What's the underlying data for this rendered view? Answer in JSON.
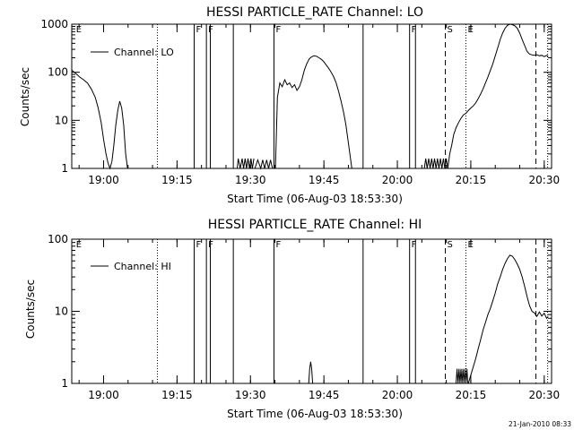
{
  "stamp": "21-Jan-2010 08:33",
  "chart_data": [
    {
      "type": "line",
      "title": "HESSI PARTICLE_RATE Channel: LO",
      "xlabel": "Start Time (06-Aug-03 18:53:30)",
      "ylabel": "Counts/sec",
      "yscale": "log",
      "xlim": [
        0,
        98
      ],
      "ylim": [
        1,
        1000
      ],
      "xticks": [
        {
          "x": 6.5,
          "label": "19:00"
        },
        {
          "x": 21.5,
          "label": "19:15"
        },
        {
          "x": 36.5,
          "label": "19:30"
        },
        {
          "x": 51.5,
          "label": "19:45"
        },
        {
          "x": 66.5,
          "label": "20:00"
        },
        {
          "x": 81.5,
          "label": "20:15"
        },
        {
          "x": 96.5,
          "label": "20:30"
        }
      ],
      "yticks": [
        {
          "y": 1,
          "label": "1"
        },
        {
          "y": 10,
          "label": "10"
        },
        {
          "y": 100,
          "label": "100"
        },
        {
          "y": 1000,
          "label": "1000"
        }
      ],
      "legend": {
        "position": "top-left",
        "label": "Channel: LO"
      },
      "markers": [
        {
          "x": 0.5,
          "label": "E",
          "style": "none"
        },
        {
          "x": 17.5,
          "label": "",
          "style": "dotted"
        },
        {
          "x": 25.0,
          "label": "F",
          "style": "solid"
        },
        {
          "x": 27.5,
          "label": "F",
          "style": "solid"
        },
        {
          "x": 28.3,
          "label": "",
          "style": "solid"
        },
        {
          "x": 33.0,
          "label": "",
          "style": "solid"
        },
        {
          "x": 41.3,
          "label": "F",
          "style": "solid"
        },
        {
          "x": 59.5,
          "label": "",
          "style": "solid"
        },
        {
          "x": 69.0,
          "label": "F",
          "style": "solid"
        },
        {
          "x": 70.2,
          "label": "",
          "style": "solid"
        },
        {
          "x": 76.3,
          "label": "S",
          "style": "dashed"
        },
        {
          "x": 80.5,
          "label": "E",
          "style": "dotted"
        },
        {
          "x": 94.8,
          "label": "",
          "style": "dashed"
        },
        {
          "x": 97.2,
          "label": "",
          "style": "dotted"
        }
      ],
      "series": [
        {
          "segment": 1,
          "x": [
            0,
            0.8,
            1.6,
            2.4,
            3.2,
            4.0,
            4.8,
            5.4,
            6.0,
            6.5,
            7.0,
            7.4,
            7.8,
            8.2
          ],
          "y": [
            110,
            95,
            80,
            70,
            60,
            45,
            30,
            18,
            9,
            4,
            2,
            1.3,
            1.0,
            1.4
          ]
        },
        {
          "segment": 2,
          "x": [
            8.2,
            8.6,
            9.0,
            9.4,
            9.8,
            10.2,
            10.6,
            11.0,
            11.4
          ],
          "y": [
            1.4,
            3,
            8,
            16,
            25,
            18,
            8,
            2,
            1.0
          ]
        },
        {
          "segment": 3,
          "x": [
            33.8,
            34.0,
            34.4,
            34.8,
            35.1,
            35.4,
            35.7,
            36.0,
            36.3,
            36.6,
            36.9,
            37.2
          ],
          "y": [
            1.0,
            1.6,
            1.0,
            1.6,
            1.0,
            1.6,
            1.0,
            1.6,
            1.0,
            1.6,
            1.0,
            1.6
          ]
        },
        {
          "segment": 4,
          "x": [
            37.4,
            38.0,
            38.6,
            39.0,
            39.4,
            39.8,
            40.2,
            40.6,
            41.0
          ],
          "y": [
            1.0,
            1.5,
            1.0,
            1.5,
            1.0,
            1.5,
            1.0,
            1.5,
            1.0
          ]
        },
        {
          "segment": 5,
          "x": [
            41.6,
            42.0,
            42.5,
            43.0,
            43.5,
            44.0,
            44.5,
            45.0,
            45.5,
            46.0,
            46.5,
            47.0,
            47.5,
            48.0,
            48.5,
            49.0,
            49.5,
            50.0,
            50.5,
            51.0,
            51.5,
            52.0,
            52.5,
            53.0,
            53.5,
            54.0,
            54.5,
            55.0,
            55.5,
            56.0,
            56.4,
            56.8,
            57.2
          ],
          "y": [
            1.0,
            30,
            60,
            50,
            70,
            55,
            60,
            48,
            55,
            42,
            50,
            70,
            110,
            150,
            190,
            210,
            220,
            215,
            200,
            185,
            165,
            140,
            120,
            100,
            80,
            60,
            40,
            25,
            15,
            8,
            4,
            2,
            1.0
          ]
        },
        {
          "segment": 6,
          "x": [
            72.0,
            72.3,
            72.6,
            72.9,
            73.2,
            73.5,
            73.8,
            74.1,
            74.4,
            74.7,
            75.0,
            75.3,
            75.6,
            75.9,
            76.2,
            76.5,
            76.8
          ],
          "y": [
            1.0,
            1.6,
            1.0,
            1.6,
            1.0,
            1.6,
            1.0,
            1.6,
            1.0,
            1.6,
            1.0,
            1.6,
            1.0,
            1.6,
            1.0,
            1.6,
            1.0
          ]
        },
        {
          "segment": 7,
          "x": [
            76.8,
            77.2,
            77.6,
            78.0,
            78.5,
            79.0,
            79.5,
            80.0,
            80.5,
            81.0,
            81.5,
            82.0,
            82.5,
            83.0,
            83.5,
            84.0,
            84.5,
            85.0,
            85.5,
            86.0,
            86.5,
            87.0,
            87.5,
            88.0,
            88.5,
            89.0,
            89.5,
            90.0,
            90.5,
            91.0,
            91.5,
            92.0,
            92.5,
            93.0,
            93.5,
            94.0,
            94.5,
            95.0,
            95.5,
            96.0,
            96.5,
            97.0,
            97.3
          ],
          "y": [
            1.0,
            2,
            3,
            5,
            7,
            9,
            11,
            13,
            14,
            16,
            18,
            20,
            23,
            28,
            35,
            45,
            60,
            80,
            110,
            150,
            220,
            320,
            480,
            650,
            820,
            950,
            1000,
            980,
            920,
            820,
            650,
            480,
            360,
            270,
            240,
            230,
            225,
            232,
            220,
            226,
            212,
            225,
            215
          ]
        }
      ]
    },
    {
      "type": "line",
      "title": "HESSI PARTICLE_RATE Channel: HI",
      "xlabel": "Start Time (06-Aug-03 18:53:30)",
      "ylabel": "Counts/sec",
      "yscale": "log",
      "xlim": [
        0,
        98
      ],
      "ylim": [
        1,
        100
      ],
      "xticks": [
        {
          "x": 6.5,
          "label": "19:00"
        },
        {
          "x": 21.5,
          "label": "19:15"
        },
        {
          "x": 36.5,
          "label": "19:30"
        },
        {
          "x": 51.5,
          "label": "19:45"
        },
        {
          "x": 66.5,
          "label": "20:00"
        },
        {
          "x": 81.5,
          "label": "20:15"
        },
        {
          "x": 96.5,
          "label": "20:30"
        }
      ],
      "yticks": [
        {
          "y": 1,
          "label": "1"
        },
        {
          "y": 10,
          "label": "10"
        },
        {
          "y": 100,
          "label": "100"
        }
      ],
      "legend": {
        "position": "top-left",
        "label": "Channel: HI"
      },
      "markers": [
        {
          "x": 0.5,
          "label": "E",
          "style": "none"
        },
        {
          "x": 17.5,
          "label": "",
          "style": "dotted"
        },
        {
          "x": 25.0,
          "label": "F",
          "style": "solid"
        },
        {
          "x": 27.5,
          "label": "F",
          "style": "solid"
        },
        {
          "x": 28.3,
          "label": "",
          "style": "solid"
        },
        {
          "x": 33.0,
          "label": "",
          "style": "solid"
        },
        {
          "x": 41.3,
          "label": "F",
          "style": "solid"
        },
        {
          "x": 59.5,
          "label": "",
          "style": "solid"
        },
        {
          "x": 69.0,
          "label": "F",
          "style": "solid"
        },
        {
          "x": 70.2,
          "label": "",
          "style": "solid"
        },
        {
          "x": 76.3,
          "label": "S",
          "style": "dashed"
        },
        {
          "x": 80.5,
          "label": "E",
          "style": "dotted"
        },
        {
          "x": 94.8,
          "label": "",
          "style": "dashed"
        },
        {
          "x": 97.2,
          "label": "",
          "style": "dotted"
        }
      ],
      "series": [
        {
          "segment": 1,
          "x": [
            48.4,
            48.6,
            48.8,
            49.0,
            49.2
          ],
          "y": [
            1.0,
            1.6,
            2.0,
            1.6,
            1.0
          ]
        },
        {
          "segment": 2,
          "x": [
            78.5,
            78.7,
            78.9,
            79.1,
            79.3,
            79.5,
            79.7,
            79.9,
            80.1,
            80.3,
            80.5,
            80.7,
            80.9
          ],
          "y": [
            1.0,
            1.6,
            1.0,
            1.6,
            1.0,
            1.6,
            1.0,
            1.6,
            1.0,
            1.6,
            1.0,
            1.6,
            1.0
          ]
        },
        {
          "segment": 3,
          "x": [
            81.0,
            81.5,
            82.0,
            82.5,
            83.0,
            83.5,
            84.0,
            84.5,
            85.0,
            85.5,
            86.0,
            86.5,
            87.0,
            87.5,
            88.0,
            88.5,
            89.0,
            89.5,
            90.0,
            90.5,
            91.0,
            91.5,
            92.0,
            92.5,
            93.0,
            93.5,
            94.0,
            94.5,
            95.0,
            95.5,
            96.0,
            96.5,
            97.0,
            97.3
          ],
          "y": [
            1.0,
            1.3,
            1.7,
            2.2,
            3,
            4,
            5.5,
            7,
            9,
            11,
            14,
            18,
            24,
            30,
            38,
            46,
            54,
            60,
            58,
            52,
            45,
            38,
            30,
            22,
            16,
            12,
            10,
            9.5,
            8.5,
            9.8,
            8.6,
            9.4,
            8.0,
            8.5
          ]
        }
      ]
    }
  ]
}
